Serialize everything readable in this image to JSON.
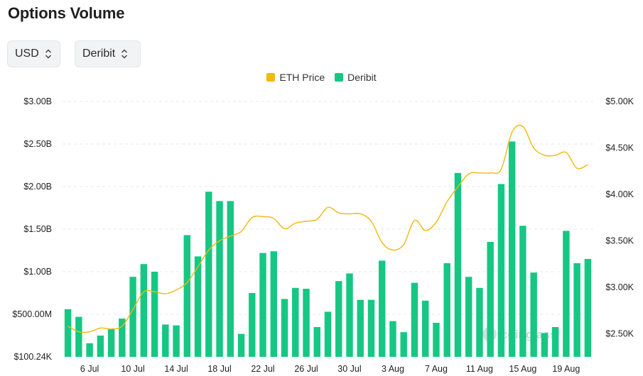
{
  "page": {
    "title": "Options Volume"
  },
  "controls": {
    "currency": {
      "value": "USD",
      "icon": "chevron-up-down-icon"
    },
    "exchange": {
      "value": "Deribit",
      "icon": "chevron-up-down-icon"
    }
  },
  "watermark": "coinglass",
  "colors": {
    "bar": "#16c784",
    "line": "#f0b90b",
    "grid": "#e6e8eb",
    "text": "#222222"
  },
  "chart_data": {
    "type": "bar",
    "title": "Options Volume",
    "legend": {
      "placement": "top-center",
      "entries": [
        "ETH Price",
        "Deribit"
      ]
    },
    "grid": true,
    "x_tick_labels": [
      "6 Jul",
      "10 Jul",
      "14 Jul",
      "18 Jul",
      "22 Jul",
      "26 Jul",
      "30 Jul",
      "3 Aug",
      "7 Aug",
      "11 Aug",
      "15 Aug",
      "19 Aug"
    ],
    "x_tick_indices": [
      2,
      6,
      10,
      14,
      18,
      22,
      26,
      30,
      34,
      38,
      42,
      46
    ],
    "y_left": {
      "ticks": [
        "$100.24K",
        "$500.00M",
        "$1.00B",
        "$1.50B",
        "$2.00B",
        "$2.50B",
        "$3.00B"
      ],
      "tick_values": [
        0.0001,
        0.5,
        1.0,
        1.5,
        2.0,
        2.5,
        3.0
      ],
      "range": [
        0,
        3.0
      ],
      "unit": "USD billions"
    },
    "y_right": {
      "ticks": [
        "$2.50K",
        "$3.00K",
        "$3.50K",
        "$4.00K",
        "$4.50K",
        "$5.00K"
      ],
      "tick_values": [
        2.5,
        3.0,
        3.5,
        4.0,
        4.5,
        5.0
      ],
      "range": [
        2.25,
        5.0
      ],
      "unit": "USD thousands"
    },
    "dates": [
      "4 Jul",
      "5 Jul",
      "6 Jul",
      "7 Jul",
      "8 Jul",
      "9 Jul",
      "10 Jul",
      "11 Jul",
      "12 Jul",
      "13 Jul",
      "14 Jul",
      "15 Jul",
      "16 Jul",
      "17 Jul",
      "18 Jul",
      "19 Jul",
      "20 Jul",
      "21 Jul",
      "22 Jul",
      "23 Jul",
      "24 Jul",
      "25 Jul",
      "26 Jul",
      "27 Jul",
      "28 Jul",
      "29 Jul",
      "30 Jul",
      "31 Jul",
      "1 Aug",
      "2 Aug",
      "3 Aug",
      "4 Aug",
      "5 Aug",
      "6 Aug",
      "7 Aug",
      "8 Aug",
      "9 Aug",
      "10 Aug",
      "11 Aug",
      "12 Aug",
      "13 Aug",
      "14 Aug",
      "15 Aug",
      "16 Aug",
      "17 Aug",
      "18 Aug",
      "19 Aug",
      "20 Aug",
      "21 Aug"
    ],
    "series": [
      {
        "name": "Deribit",
        "kind": "bar",
        "axis": "left",
        "values": [
          0.56,
          0.47,
          0.16,
          0.25,
          0.33,
          0.45,
          0.94,
          1.09,
          1.0,
          0.38,
          0.37,
          1.43,
          1.18,
          1.94,
          1.83,
          1.83,
          0.27,
          0.75,
          1.22,
          1.24,
          0.68,
          0.81,
          0.8,
          0.35,
          0.53,
          0.89,
          0.98,
          0.67,
          0.67,
          1.13,
          0.42,
          0.29,
          0.87,
          0.66,
          0.4,
          1.1,
          2.16,
          0.94,
          0.81,
          1.35,
          2.03,
          2.53,
          1.54,
          0.99,
          0.28,
          0.35,
          1.48,
          1.1,
          1.15
        ]
      },
      {
        "name": "ETH Price",
        "kind": "line",
        "axis": "right",
        "values": [
          2.58,
          2.52,
          2.52,
          2.56,
          2.55,
          2.58,
          2.76,
          2.95,
          2.95,
          2.93,
          2.97,
          3.05,
          3.22,
          3.4,
          3.5,
          3.55,
          3.6,
          3.75,
          3.76,
          3.74,
          3.63,
          3.69,
          3.71,
          3.73,
          3.86,
          3.8,
          3.79,
          3.79,
          3.71,
          3.48,
          3.4,
          3.46,
          3.72,
          3.61,
          3.7,
          3.92,
          4.08,
          4.22,
          4.23,
          4.23,
          4.27,
          4.67,
          4.73,
          4.5,
          4.42,
          4.42,
          4.45,
          4.28,
          4.32
        ]
      }
    ]
  }
}
